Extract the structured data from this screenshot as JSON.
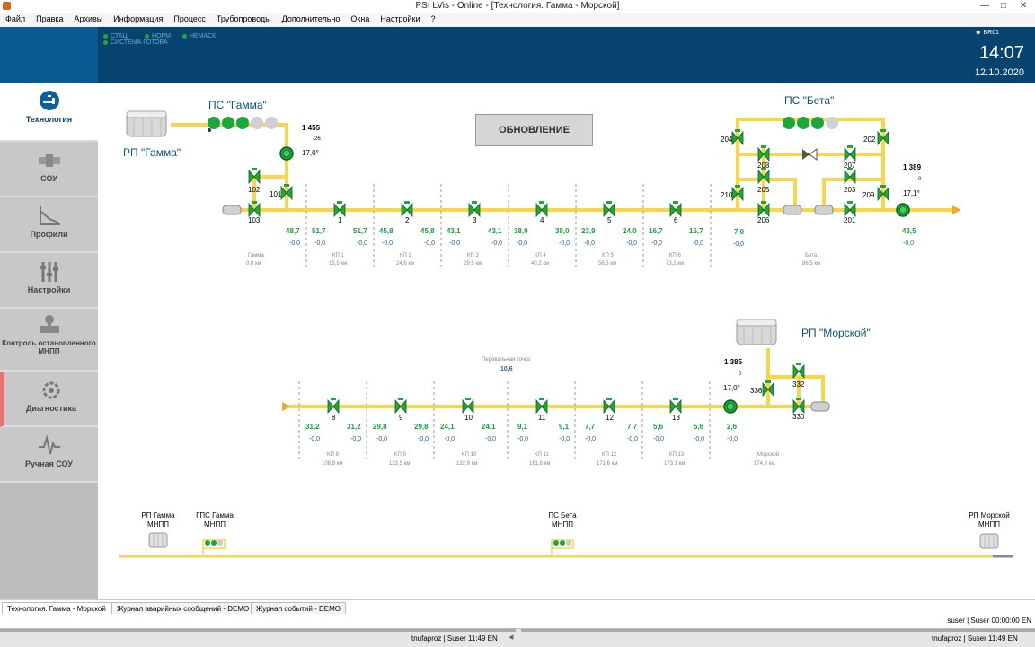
{
  "window": {
    "title": "PSI LVis - Online - [Технология. Гамма - Морской]"
  },
  "menu": [
    "Файл",
    "Правка",
    "Архивы",
    "Информация",
    "Процесс",
    "Трубопроводы",
    "Дополнительно",
    "Окна",
    "Настройки",
    "?"
  ],
  "header": {
    "status": [
      "СТАЦ",
      "НОРМ",
      "НЕМАСК",
      "СИСТЕМА ГОТОВА"
    ],
    "user": "BR01",
    "time": "14:07",
    "date": "12.10.2020"
  },
  "sidebar": [
    {
      "label": "Технология",
      "icon": "faucet-icon",
      "active": true
    },
    {
      "label": "СОУ",
      "icon": "pipe-icon"
    },
    {
      "label": "Профили",
      "icon": "profile-chart-icon"
    },
    {
      "label": "Настройки",
      "icon": "sliders-icon"
    },
    {
      "label": "Контроль остановленного МНПП",
      "icon": "valve-gauge-icon"
    },
    {
      "label": "Диагностика",
      "icon": "gear-icon",
      "alarm": true
    },
    {
      "label": "Ручная СОУ",
      "icon": "pulse-icon"
    }
  ],
  "main": {
    "refresh_label": "ОБНОВЛЕНИЕ",
    "top": {
      "ps_gamma": "ПС \"Гамма\"",
      "rp_gamma": "РП \"Гамма\"",
      "ps_beta": "ПС \"Бета\"",
      "gamma_pressure": "1 455",
      "gamma_small": "-26",
      "gamma_temp": "17,0°",
      "beta_pressure": "1 389",
      "beta_small": "0",
      "beta_temp": "17,1°",
      "valves": {
        "v102": "102",
        "v101": "101",
        "v103": "103",
        "v1": "1",
        "v2": "2",
        "v3": "3",
        "v4": "4",
        "v5": "5",
        "v6": "6",
        "v204": "204",
        "v208": "208",
        "v207": "207",
        "v202": "202",
        "v205": "205",
        "v203": "203",
        "v210": "210",
        "v209": "209",
        "v206": "206",
        "v201": "201"
      },
      "flows": [
        "48,7",
        "51,7",
        "51,7",
        "45,8",
        "45,8",
        "43,1",
        "43,1",
        "38,0",
        "38,0",
        "23,9",
        "24,0",
        "16,7",
        "16,7",
        "7,0",
        "43,5"
      ],
      "dp": [
        "-0,0",
        "-0,0",
        "-0,0",
        "-0,0",
        "-0,0",
        "-0,0",
        "-0,0",
        "-0,0",
        "-0,0",
        "-0,0",
        "-0,0",
        "-0,0",
        "-0,0",
        "-0,0",
        "-0,0"
      ],
      "sections": [
        {
          "name": "Гамма",
          "km": "0,0",
          "unit": "км"
        },
        {
          "name": "КП 1",
          "km": "15,5",
          "unit": "км"
        },
        {
          "name": "КП 2",
          "km": "24,6",
          "unit": "км"
        },
        {
          "name": "КП 3",
          "km": "29,5",
          "unit": "км"
        },
        {
          "name": "КП 4",
          "km": "40,2",
          "unit": "км"
        },
        {
          "name": "КП 5",
          "km": "56,3",
          "unit": "км"
        },
        {
          "name": "КП 6",
          "km": "73,2",
          "unit": "км"
        },
        {
          "name": "Бета",
          "km": "86,5",
          "unit": "км"
        }
      ]
    },
    "mid": {
      "rp_morskoy": "РП \"Морской\"",
      "pass_point_label": "Перевальная точка",
      "pass_point_value": "10,6",
      "morskoy_pressure": "1 385",
      "morskoy_small": "0",
      "morskoy_temp": "17,0°",
      "valves": {
        "v8": "8",
        "v9": "9",
        "v10": "10",
        "v11": "11",
        "v12": "12",
        "v13": "13",
        "v336": "336",
        "v332": "332",
        "v330": "330"
      },
      "flows": [
        "31,2",
        "31,2",
        "29,8",
        "29,8",
        "24,1",
        "24,1",
        "9,1",
        "9,1",
        "7,7",
        "7,7",
        "5,6",
        "5,6",
        "2,6"
      ],
      "dp": [
        "-0,0",
        "-0,0",
        "-0,0",
        "-0,0",
        "-0,0",
        "-0,0",
        "-0,0",
        "-0,0",
        "-0,0",
        "-0,0",
        "-0,0",
        "-0,0",
        "-0,0"
      ],
      "sections": [
        {
          "name": "КП 8",
          "km": "106,9",
          "unit": "км"
        },
        {
          "name": "КП 9",
          "km": "123,5",
          "unit": "км"
        },
        {
          "name": "КП 10",
          "km": "132,9",
          "unit": "км"
        },
        {
          "name": "КП 11",
          "km": "161,8",
          "unit": "км"
        },
        {
          "name": "КП 12",
          "km": "171,6",
          "unit": "км"
        },
        {
          "name": "КП 13",
          "km": "173,1",
          "unit": "км"
        },
        {
          "name": "Морской",
          "km": "174,3",
          "unit": "км"
        }
      ]
    },
    "overview": [
      {
        "line1": "РП Гамма",
        "line2": "МНПП"
      },
      {
        "line1": "ГПС Гамма",
        "line2": "МНПП"
      },
      {
        "line1": "ПС Бета",
        "line2": "МНПП"
      },
      {
        "line1": "РП Морской",
        "line2": "МНПП"
      }
    ]
  },
  "tabs": [
    "Технология. Гамма - Морской",
    "Журнал аварийных сообщений - DEMO",
    "Журнал событий - DEMO"
  ],
  "statusline": "suser | Suser 00:00:00  EN",
  "taskbar": {
    "left": "tnufaproz | Suser 11:49  EN",
    "right": "tnufaproz | Suser 11:49  EN"
  },
  "colors": {
    "pipe": "#f5d64e",
    "pipe_edge": "#e2b530",
    "valve": "#1fa83a",
    "header": "#06436e",
    "accent": "#0d4f83",
    "flow": "#1e9a3c",
    "dp": "#1f5fa6"
  }
}
